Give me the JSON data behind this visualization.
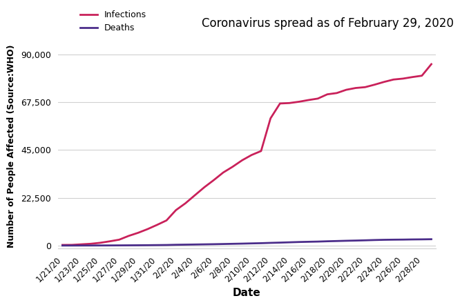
{
  "title": "Coronavirus spread as of February 29, 2020",
  "xlabel": "Date",
  "ylabel": "Number of People Affected (Source:WHO)",
  "infections_color": "#c9215a",
  "deaths_color": "#4b2d8a",
  "background_color": "#ffffff",
  "ylim": [
    -1500,
    95000
  ],
  "yticks": [
    0,
    22500,
    45000,
    67500,
    90000
  ],
  "ytick_labels": [
    "0",
    "22,500",
    "45,000",
    "67,500",
    "90,000"
  ],
  "dates": [
    "1/21/20",
    "1/22/20",
    "1/23/20",
    "1/24/20",
    "1/25/20",
    "1/26/20",
    "1/27/20",
    "1/28/20",
    "1/29/20",
    "1/30/20",
    "1/31/20",
    "2/1/20",
    "2/2/20",
    "2/3/20",
    "2/4/20",
    "2/5/20",
    "2/6/20",
    "2/7/20",
    "2/8/20",
    "2/9/20",
    "2/10/20",
    "2/11/20",
    "2/12/20",
    "2/13/20",
    "2/14/20",
    "2/15/20",
    "2/16/20",
    "2/17/20",
    "2/18/20",
    "2/19/20",
    "2/20/20",
    "2/21/20",
    "2/22/20",
    "2/23/20",
    "2/24/20",
    "2/25/20",
    "2/26/20",
    "2/27/20",
    "2/28/20",
    "2/29/20"
  ],
  "xtick_dates": [
    "1/21/20",
    "1/23/20",
    "1/25/20",
    "1/27/20",
    "1/29/20",
    "1/31/20",
    "2/2/20",
    "2/4/20",
    "2/6/20",
    "2/8/20",
    "2/10/20",
    "2/12/20",
    "2/14/20",
    "2/16/20",
    "2/18/20",
    "2/20/20",
    "2/22/20",
    "2/24/20",
    "2/26/20",
    "2/28/20"
  ],
  "infections": [
    282,
    309,
    571,
    830,
    1297,
    1985,
    2761,
    4537,
    5997,
    7736,
    9720,
    11821,
    16678,
    19887,
    23680,
    27439,
    30817,
    34391,
    37120,
    40150,
    42638,
    44500,
    59895,
    66885,
    67100,
    67707,
    68500,
    69197,
    71200,
    71800,
    73332,
    74185,
    74576,
    75748,
    77042,
    78166,
    78601,
    79331,
    79968,
    85403
  ],
  "deaths": [
    6,
    6,
    17,
    25,
    41,
    56,
    80,
    106,
    132,
    170,
    213,
    259,
    361,
    425,
    490,
    563,
    633,
    722,
    813,
    906,
    1013,
    1113,
    1259,
    1380,
    1523,
    1665,
    1770,
    1864,
    2009,
    2126,
    2247,
    2345,
    2460,
    2596,
    2700,
    2763,
    2800,
    2872,
    2912,
    2977
  ]
}
